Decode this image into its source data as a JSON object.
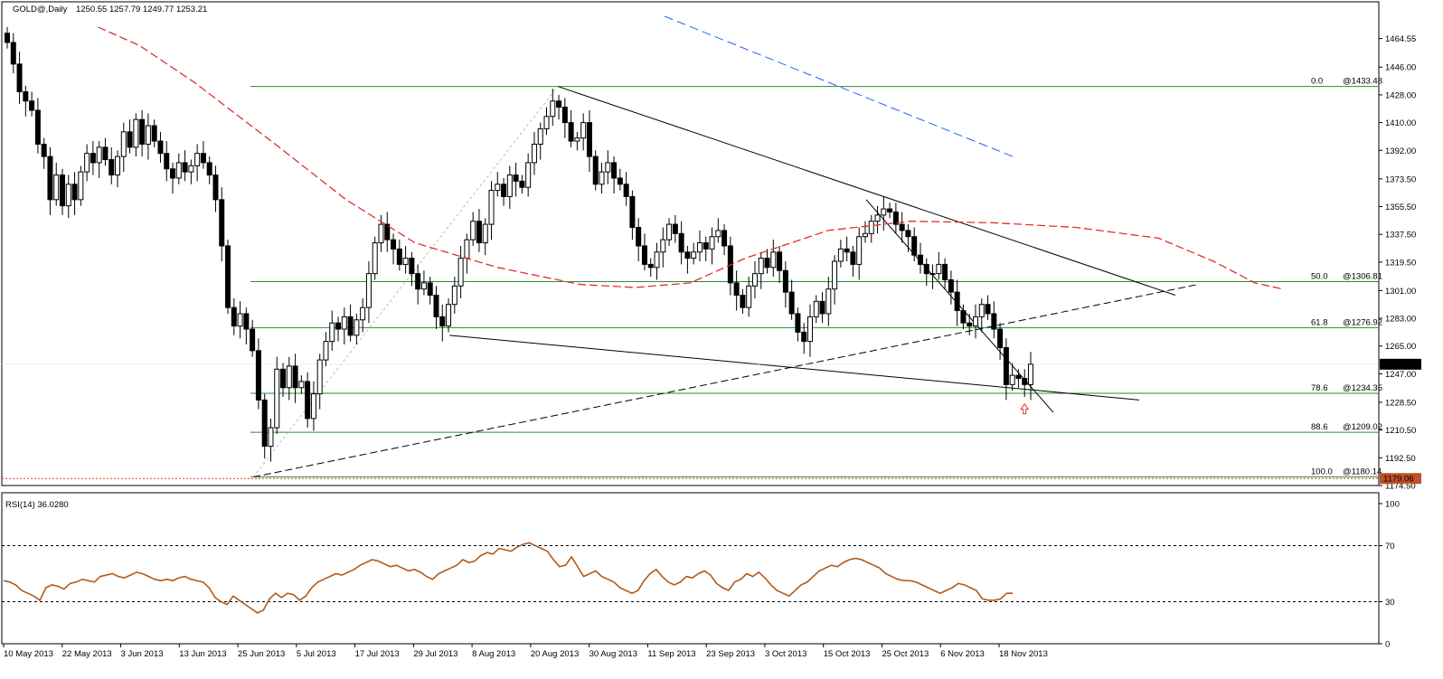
{
  "header": {
    "symbol": "GOLD@,Daily",
    "ohlc": "1250.55 1257.79 1249.77 1253.21"
  },
  "rsi_header": "RSI(14) 36.0280",
  "colors": {
    "up": "#ffffff",
    "down": "#000000",
    "fib": "#2e8b2e",
    "ma_red": "#e03030",
    "trend_blue": "#2060ff",
    "rsi": "#b05a1a",
    "current_bg": "#000000",
    "low_bg": "#c0502a"
  },
  "chart_data": [
    {
      "type": "candlestick",
      "title": "GOLD@,Daily",
      "ylim": [
        1174.5,
        1479
      ],
      "price_ticks": [
        "1464.55",
        "1446.00",
        "1428.00",
        "1410.00",
        "1392.00",
        "1373.50",
        "1355.50",
        "1337.50",
        "1319.50",
        "1301.00",
        "1283.00",
        "1265.00",
        "1247.00",
        "1228.50",
        "1210.50",
        "1192.50",
        "1174.50"
      ],
      "current_price": "1253.21",
      "low_price": "1179.06",
      "x_labels": [
        "10 May 2013",
        "22 May 2013",
        "3 Jun 2013",
        "13 Jun 2013",
        "25 Jun 2013",
        "5 Jul 2013",
        "17 Jul 2013",
        "29 Jul 2013",
        "8 Aug 2013",
        "20 Aug 2013",
        "30 Aug 2013",
        "11 Sep 2013",
        "23 Sep 2013",
        "3 Oct 2013",
        "15 Oct 2013",
        "25 Oct 2013",
        "6 Nov 2013",
        "18 Nov 2013"
      ],
      "fib_levels": [
        {
          "label": "0.0",
          "price_label": "@1433.48",
          "value": 1433.48
        },
        {
          "label": "50.0",
          "price_label": "@1306.81",
          "value": 1306.81
        },
        {
          "label": "61.8",
          "price_label": "@1276.92",
          "value": 1276.92
        },
        {
          "label": "78.6",
          "price_label": "@1234.35",
          "value": 1234.35
        },
        {
          "label": "88.6",
          "price_label": "@1209.02",
          "value": 1209.02
        },
        {
          "label": "100.0",
          "price_label": "@1180.14",
          "value": 1180.14
        }
      ],
      "close": [
        1462,
        1448,
        1430,
        1424,
        1418,
        1396,
        1388,
        1360,
        1376,
        1356,
        1370,
        1360,
        1378,
        1390,
        1384,
        1394,
        1386,
        1376,
        1388,
        1404,
        1394,
        1412,
        1396,
        1408,
        1398,
        1390,
        1380,
        1374,
        1384,
        1378,
        1382,
        1390,
        1384,
        1376,
        1360,
        1330,
        1290,
        1278,
        1286,
        1276,
        1262,
        1230,
        1200,
        1212,
        1250,
        1238,
        1252,
        1238,
        1242,
        1218,
        1234,
        1256,
        1268,
        1280,
        1276,
        1284,
        1272,
        1282,
        1290,
        1312,
        1332,
        1344,
        1334,
        1328,
        1318,
        1322,
        1312,
        1302,
        1306,
        1298,
        1284,
        1278,
        1292,
        1304,
        1322,
        1334,
        1346,
        1332,
        1344,
        1366,
        1370,
        1362,
        1376,
        1372,
        1368,
        1384,
        1396,
        1406,
        1414,
        1424,
        1420,
        1410,
        1398,
        1400,
        1410,
        1388,
        1370,
        1378,
        1384,
        1374,
        1370,
        1362,
        1342,
        1330,
        1318,
        1316,
        1326,
        1334,
        1344,
        1338,
        1326,
        1322,
        1326,
        1332,
        1328,
        1336,
        1340,
        1330,
        1306,
        1298,
        1290,
        1304,
        1312,
        1322,
        1316,
        1326,
        1314,
        1300,
        1286,
        1274,
        1268,
        1284,
        1294,
        1286,
        1302,
        1320,
        1328,
        1326,
        1318,
        1336,
        1338,
        1346,
        1350,
        1354,
        1352,
        1344,
        1340,
        1336,
        1324,
        1318,
        1312,
        1312,
        1318,
        1308,
        1300,
        1288,
        1280,
        1278,
        1284,
        1292,
        1286,
        1276,
        1264,
        1240,
        1246,
        1244,
        1240,
        1253.21
      ],
      "ma_red": [
        [
          0.07,
          1472
        ],
        [
          0.1,
          1460
        ],
        [
          0.14,
          1436
        ],
        [
          0.2,
          1395
        ],
        [
          0.25,
          1360
        ],
        [
          0.3,
          1332
        ],
        [
          0.36,
          1316
        ],
        [
          0.42,
          1305
        ],
        [
          0.46,
          1303
        ],
        [
          0.5,
          1306
        ],
        [
          0.54,
          1322
        ],
        [
          0.6,
          1340
        ],
        [
          0.66,
          1346
        ],
        [
          0.72,
          1345
        ],
        [
          0.78,
          1342
        ],
        [
          0.84,
          1335
        ],
        [
          0.88,
          1320
        ],
        [
          0.91,
          1306
        ],
        [
          0.93,
          1302
        ]
      ],
      "rsi": {
        "ylim": [
          0,
          100
        ],
        "ticks": [
          "100",
          "70",
          "30",
          "0"
        ],
        "levels": [
          70,
          30
        ],
        "values": [
          45,
          44,
          42,
          38,
          36,
          34,
          31,
          40,
          42,
          41,
          39,
          43,
          44,
          46,
          45,
          44,
          48,
          49,
          50,
          48,
          47,
          49,
          51,
          50,
          48,
          46,
          45,
          46,
          45,
          47,
          48,
          46,
          45,
          44,
          40,
          33,
          30,
          28,
          34,
          31,
          28,
          25,
          22,
          24,
          32,
          36,
          33,
          36,
          35,
          31,
          34,
          40,
          44,
          46,
          48,
          50,
          49,
          51,
          53,
          56,
          58,
          60,
          59,
          57,
          55,
          56,
          54,
          52,
          53,
          51,
          48,
          46,
          50,
          52,
          54,
          56,
          60,
          58,
          59,
          63,
          65,
          64,
          68,
          67,
          66,
          69,
          71,
          72,
          70,
          68,
          66,
          60,
          55,
          56,
          62,
          55,
          48,
          50,
          52,
          48,
          46,
          44,
          40,
          38,
          36,
          38,
          45,
          50,
          53,
          48,
          44,
          42,
          44,
          48,
          47,
          50,
          52,
          49,
          43,
          40,
          38,
          44,
          46,
          50,
          48,
          51,
          47,
          42,
          38,
          36,
          34,
          38,
          42,
          44,
          48,
          52,
          54,
          56,
          55,
          58,
          60,
          61,
          60,
          58,
          56,
          54,
          50,
          48,
          46,
          45,
          45,
          44,
          42,
          40,
          38,
          36,
          38,
          40,
          43,
          42,
          40,
          38,
          32,
          31,
          31,
          32,
          36,
          36.03
        ]
      }
    }
  ]
}
